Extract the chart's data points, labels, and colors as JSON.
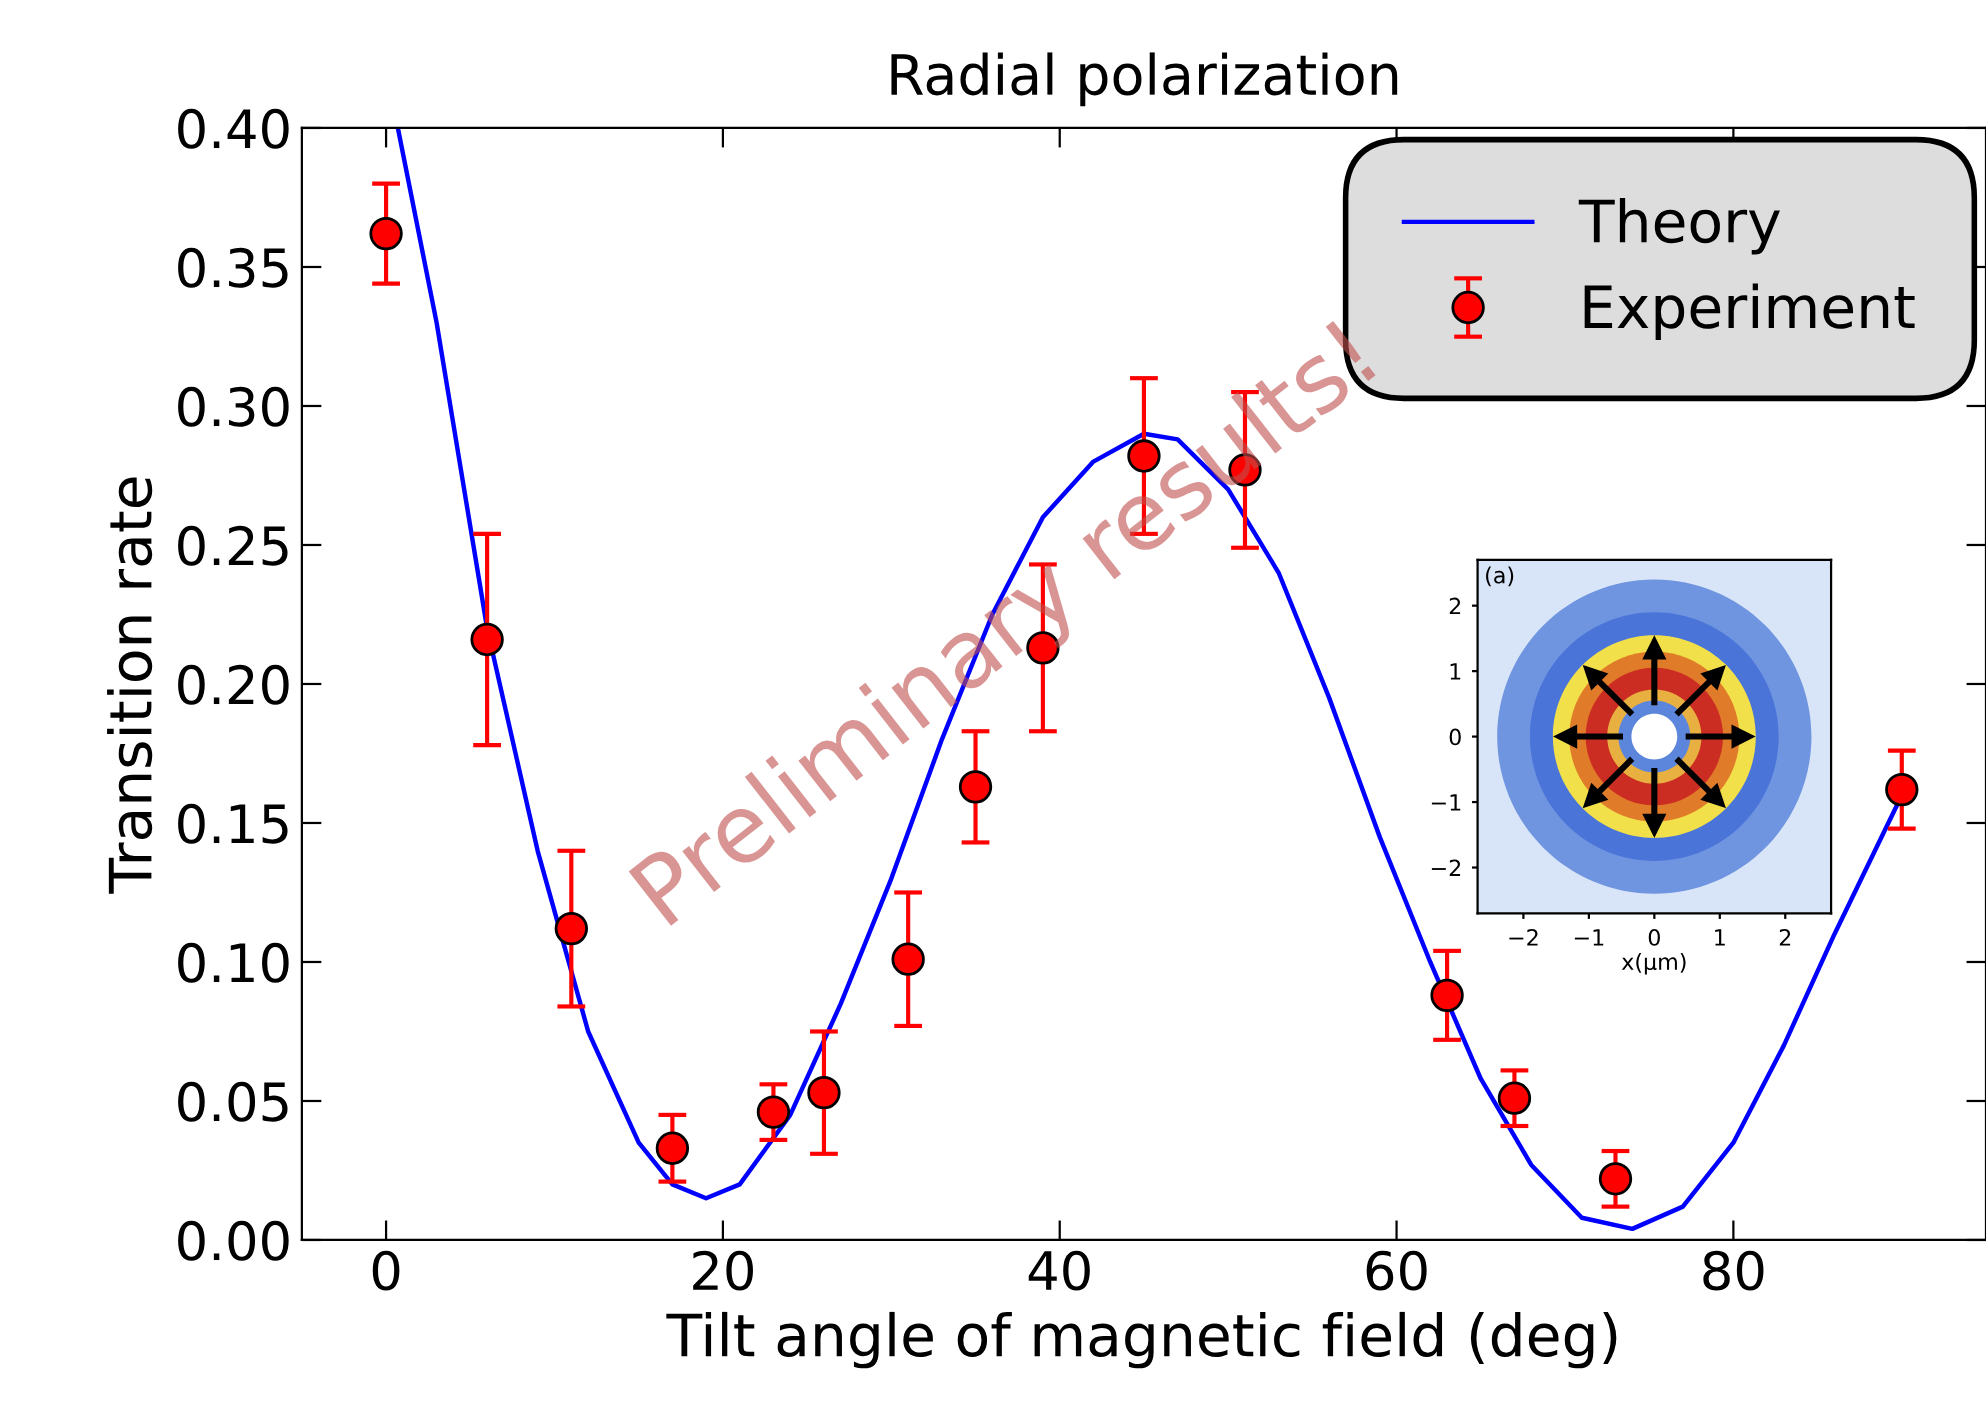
{
  "chart_data": {
    "type": "scatter",
    "title": "Radial polarization",
    "xlabel": "Tilt angle of magnetic field (deg)",
    "ylabel": "Transition rate",
    "xlim": [
      -5,
      95
    ],
    "ylim": [
      0,
      0.4
    ],
    "xticks": [
      0,
      20,
      40,
      60,
      80
    ],
    "yticks": [
      {
        "value": 0,
        "label": "0.00"
      },
      {
        "value": 0.05,
        "label": "0.05"
      },
      {
        "value": 0.1,
        "label": "0.10"
      },
      {
        "value": 0.15,
        "label": "0.15"
      },
      {
        "value": 0.2,
        "label": "0.20"
      },
      {
        "value": 0.25,
        "label": "0.25"
      },
      {
        "value": 0.3,
        "label": "0.30"
      },
      {
        "value": 0.35,
        "label": "0.35"
      },
      {
        "value": 0.4,
        "label": "0.40"
      }
    ],
    "grid": false,
    "legend": "top right",
    "series": [
      {
        "name": "Theory",
        "type": "line",
        "color": "#0000ff",
        "marker": "none",
        "line_style": "solid",
        "x": [
          0.7,
          3,
          6,
          9,
          12,
          15,
          17,
          19,
          21,
          24,
          27,
          30,
          33,
          36,
          39,
          42,
          45,
          47,
          50,
          53,
          56,
          59,
          62,
          65,
          68,
          71,
          74,
          77,
          80,
          83,
          86,
          90
        ],
        "values": [
          0.4,
          0.33,
          0.22,
          0.14,
          0.075,
          0.035,
          0.02,
          0.015,
          0.02,
          0.045,
          0.085,
          0.13,
          0.18,
          0.225,
          0.26,
          0.28,
          0.29,
          0.288,
          0.27,
          0.24,
          0.195,
          0.145,
          0.1,
          0.058,
          0.027,
          0.008,
          0.004,
          0.012,
          0.035,
          0.07,
          0.11,
          0.16
        ]
      },
      {
        "name": "Experiment",
        "color": "#ff0000",
        "marker": "circle",
        "x": [
          0,
          6,
          11,
          17,
          23,
          26,
          31,
          35,
          39,
          45,
          51,
          63,
          67,
          73,
          90
        ],
        "values": [
          0.362,
          0.216,
          0.112,
          0.033,
          0.046,
          0.053,
          0.101,
          0.163,
          0.213,
          0.282,
          0.277,
          0.088,
          0.051,
          0.022,
          0.162
        ],
        "errors": [
          0.018,
          0.038,
          0.028,
          0.012,
          0.01,
          0.022,
          0.024,
          0.02,
          0.03,
          0.028,
          0.028,
          0.016,
          0.01,
          0.01,
          0.014
        ]
      }
    ],
    "annotations": [
      "Preliminary results!",
      "(a)",
      "x(μm)",
      "−2",
      "−1",
      "0",
      "1",
      "2"
    ]
  }
}
